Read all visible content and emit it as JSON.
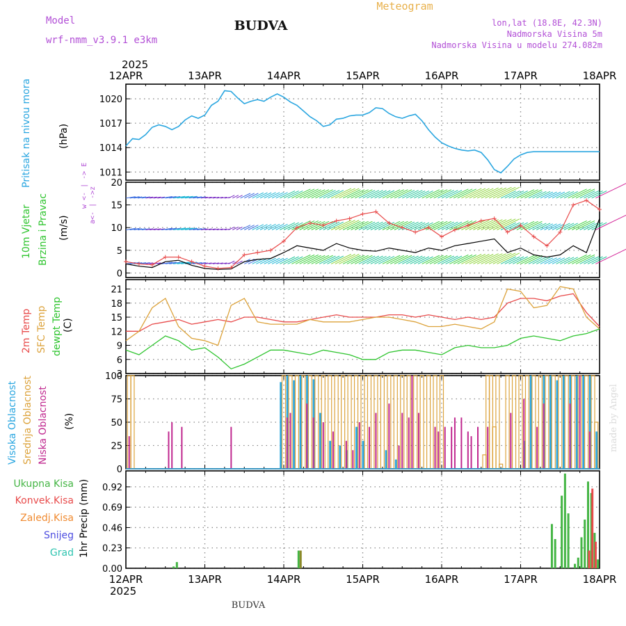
{
  "header": {
    "meteogram_label": "Meteogram",
    "model_label": "Model",
    "model_name": "wrf-nmm_v3.9.1  e3km",
    "station": "BUDVA",
    "lonlat": "lon,lat (18.8E, 42.3N)",
    "elevation": "Nadmorska Visina 5m",
    "model_elevation": "Nadmorska Visina u modelu 274.082m",
    "watermark": "made by Angel",
    "footer_station": "BUDVA"
  },
  "time_axis": {
    "year": "2025",
    "labels": [
      "12APR",
      "13APR",
      "14APR",
      "15APR",
      "16APR",
      "17APR",
      "18APR"
    ],
    "range_hours": [
      0,
      144
    ]
  },
  "colors": {
    "pressure": "#2aa6e0",
    "wind_gust": "#e84a4a",
    "wind_speed": "#000000",
    "temp2m": "#e84a4a",
    "sfc_temp": "#dca23a",
    "dewpoint": "#2ec42e",
    "cloud_high": "#2aa6e0",
    "cloud_mid": "#dca23a",
    "cloud_low": "#c0288f",
    "precip_total": "#44b544",
    "precip_conv": "#e84a4a",
    "precip_freezing": "#f08a30",
    "precip_snow": "#4d4de0",
    "precip_hail": "#2ec4b0",
    "label_purple": "#b24fd6",
    "meteogram_orange": "#e8b04a"
  },
  "chart_data": [
    {
      "id": "pressure",
      "type": "line",
      "title": "Pritisak na nivou mora",
      "ylabel": "(hPa)",
      "ylim": [
        1010,
        1021.8
      ],
      "yticks": [
        1011,
        1014,
        1017,
        1020
      ],
      "x_hours": [
        0,
        2,
        4,
        6,
        8,
        10,
        12,
        14,
        16,
        18,
        20,
        22,
        24,
        26,
        28,
        30,
        32,
        34,
        36,
        38,
        40,
        42,
        44,
        46,
        48,
        50,
        52,
        54,
        56,
        58,
        60,
        62,
        64,
        66,
        68,
        70,
        72,
        74,
        76,
        78,
        80,
        82,
        84,
        86,
        88,
        90,
        92,
        94,
        96,
        98,
        100,
        102,
        104,
        106,
        108,
        110,
        112,
        114,
        116,
        118,
        120,
        122,
        124,
        126,
        128,
        130,
        132,
        134,
        136,
        138,
        140,
        142,
        144
      ],
      "values": [
        1014.2,
        1015.1,
        1015.0,
        1015.6,
        1016.5,
        1016.8,
        1016.6,
        1016.2,
        1016.6,
        1017.4,
        1017.9,
        1017.6,
        1018.0,
        1019.2,
        1019.7,
        1021.0,
        1020.9,
        1020.1,
        1019.4,
        1019.7,
        1019.9,
        1019.7,
        1020.2,
        1020.6,
        1020.2,
        1019.6,
        1019.2,
        1018.5,
        1017.8,
        1017.3,
        1016.6,
        1016.8,
        1017.5,
        1017.6,
        1017.9,
        1018.0,
        1018.0,
        1018.3,
        1018.9,
        1018.8,
        1018.2,
        1017.8,
        1017.6,
        1017.9,
        1018.1,
        1017.3,
        1016.2,
        1015.3,
        1014.6,
        1014.2,
        1013.9,
        1013.7,
        1013.6,
        1013.7,
        1013.4,
        1012.5,
        1011.3,
        1010.9,
        1011.7,
        1012.6,
        1013.1,
        1013.4,
        1013.5,
        1013.5,
        1013.5,
        1013.5,
        1013.5,
        1013.5,
        1013.5,
        1013.5,
        1013.5,
        1013.5,
        1013.5
      ]
    },
    {
      "id": "wind",
      "type": "line",
      "title": "10m Vjetar",
      "subtitle": "Brzina i Pravac",
      "ylabel": "(m/s)",
      "ylim": [
        -1,
        20
      ],
      "yticks": [
        0,
        5,
        10,
        15,
        20
      ],
      "direction_legend": "w <- | -> E",
      "direction_legend_sub": "a<- | ->z",
      "barb_levels": [
        2,
        9.5,
        16.5
      ],
      "x_hours": [
        0,
        4,
        8,
        12,
        16,
        20,
        24,
        28,
        32,
        36,
        40,
        44,
        48,
        52,
        56,
        60,
        64,
        68,
        72,
        76,
        80,
        84,
        88,
        92,
        96,
        100,
        104,
        108,
        112,
        116,
        120,
        124,
        128,
        132,
        136,
        140,
        144
      ],
      "series": [
        {
          "name": "Brzina",
          "values": [
            2.0,
            1.5,
            1.2,
            2.5,
            2.8,
            1.7,
            1.0,
            0.8,
            0.9,
            2.5,
            3.0,
            3.2,
            4.5,
            6.0,
            5.5,
            5.0,
            6.5,
            5.5,
            5.0,
            4.8,
            5.5,
            5.0,
            4.5,
            5.5,
            5.0,
            6.0,
            6.5,
            7.0,
            7.5,
            4.5,
            5.5,
            4.0,
            3.5,
            4.0,
            6.0,
            4.5,
            12.0
          ]
        },
        {
          "name": "Udari",
          "values": [
            2.5,
            2.0,
            1.8,
            3.5,
            3.5,
            2.5,
            1.5,
            1.0,
            1.2,
            4.0,
            4.5,
            5.0,
            7.0,
            10.0,
            11.0,
            10.5,
            11.5,
            12.0,
            13.0,
            13.5,
            11.0,
            10.0,
            9.0,
            10.0,
            8.0,
            9.5,
            10.5,
            11.5,
            12.0,
            9.0,
            10.5,
            8.0,
            6.0,
            9.0,
            15.0,
            16.0,
            14.0
          ]
        }
      ]
    },
    {
      "id": "temperature",
      "type": "line",
      "title": "2m Temp",
      "title_sfc": "SFC Temp",
      "title_dew": "dewpt Temp",
      "ylabel": "(C)",
      "ylim": [
        3,
        23
      ],
      "yticks": [
        3,
        6,
        9,
        12,
        15,
        18,
        21
      ],
      "x_hours": [
        0,
        4,
        8,
        12,
        16,
        20,
        24,
        28,
        32,
        36,
        40,
        44,
        48,
        52,
        56,
        60,
        64,
        68,
        72,
        76,
        80,
        84,
        88,
        92,
        96,
        100,
        104,
        108,
        112,
        116,
        120,
        124,
        128,
        132,
        136,
        140,
        144
      ],
      "series": [
        {
          "name": "2m Temp",
          "values": [
            12.0,
            12.0,
            13.5,
            14.0,
            14.5,
            13.5,
            14.0,
            14.5,
            14.0,
            15.0,
            15.0,
            14.5,
            14.0,
            14.0,
            14.5,
            15.0,
            15.5,
            15.0,
            15.0,
            15.0,
            15.5,
            15.5,
            15.0,
            15.5,
            15.0,
            14.5,
            15.0,
            14.5,
            15.0,
            18.0,
            19.0,
            19.0,
            18.5,
            19.5,
            20.0,
            16.0,
            13.0
          ]
        },
        {
          "name": "SFC Temp",
          "values": [
            10.0,
            12.0,
            17.0,
            19.0,
            13.0,
            10.5,
            10.0,
            9.0,
            17.5,
            19.0,
            14.0,
            13.5,
            13.5,
            13.5,
            14.5,
            14.0,
            14.0,
            14.0,
            14.5,
            15.0,
            15.0,
            14.5,
            14.0,
            13.0,
            13.0,
            13.5,
            13.0,
            12.5,
            14.0,
            21.0,
            20.5,
            17.0,
            17.5,
            21.5,
            21.0,
            15.0,
            12.5
          ]
        },
        {
          "name": "dewpt Temp",
          "values": [
            8.0,
            7.0,
            9.0,
            11.0,
            10.0,
            8.0,
            8.5,
            6.5,
            4.0,
            5.0,
            6.5,
            8.0,
            8.0,
            7.5,
            7.0,
            8.0,
            7.5,
            7.0,
            6.0,
            6.0,
            7.5,
            8.0,
            8.0,
            7.5,
            7.0,
            8.5,
            9.0,
            8.5,
            8.5,
            9.0,
            10.5,
            11.0,
            10.5,
            10.0,
            11.0,
            11.5,
            12.5
          ]
        }
      ]
    },
    {
      "id": "clouds",
      "type": "bar",
      "title_high": "Visoka Oblacnost",
      "title_mid": "Srednja Oblacnost",
      "title_low": "Niska Oblacnost",
      "ylabel": "(%)",
      "ylim": [
        0,
        100
      ],
      "yticks": [
        0,
        25,
        50,
        75,
        100
      ],
      "series": [
        {
          "name": "Visoka",
          "hours": [
            47,
            49,
            51,
            53,
            55,
            57,
            59,
            62,
            65,
            67,
            70,
            72,
            79,
            82,
            121,
            123,
            127,
            129,
            131,
            133,
            135,
            137,
            139,
            141,
            143
          ],
          "values": [
            93,
            100,
            95,
            100,
            100,
            96,
            60,
            30,
            25,
            20,
            45,
            30,
            20,
            10,
            30,
            100,
            100,
            100,
            95,
            100,
            100,
            100,
            100,
            100,
            40
          ]
        },
        {
          "name": "Srednja",
          "hours": [
            1,
            2,
            48,
            50,
            52,
            54,
            56,
            58,
            60,
            62,
            64,
            66,
            68,
            70,
            72,
            74,
            76,
            78,
            80,
            82,
            84,
            86,
            88,
            90,
            92,
            94,
            96,
            109,
            110,
            111,
            112,
            113,
            114,
            116,
            118,
            120,
            122,
            124,
            126,
            128,
            130,
            132,
            134,
            136,
            138,
            140,
            142,
            143
          ],
          "values": [
            100,
            100,
            100,
            100,
            100,
            100,
            100,
            100,
            100,
            100,
            100,
            100,
            100,
            100,
            100,
            100,
            100,
            100,
            100,
            100,
            100,
            100,
            100,
            100,
            100,
            100,
            100,
            15,
            100,
            100,
            45,
            100,
            5,
            100,
            100,
            100,
            100,
            100,
            100,
            100,
            100,
            100,
            100,
            100,
            100,
            100,
            100,
            50
          ]
        },
        {
          "name": "Niska",
          "hours": [
            1,
            13,
            14,
            17,
            32,
            49,
            50,
            55,
            57,
            60,
            63,
            67,
            69,
            71,
            74,
            76,
            80,
            83,
            84,
            86,
            87,
            89,
            94,
            95,
            97,
            99,
            100,
            102,
            104,
            105,
            107,
            110,
            117,
            121,
            125,
            127,
            135,
            138,
            141
          ],
          "values": [
            35,
            40,
            50,
            45,
            45,
            55,
            60,
            70,
            55,
            50,
            40,
            30,
            20,
            50,
            45,
            60,
            70,
            25,
            60,
            55,
            100,
            60,
            45,
            40,
            45,
            45,
            55,
            55,
            40,
            35,
            45,
            45,
            60,
            75,
            45,
            70,
            70,
            100,
            40
          ]
        }
      ]
    },
    {
      "id": "precip",
      "type": "bar",
      "title_total": "Ukupna Kisa",
      "title_conv": "Konvek.Kisa",
      "title_freezing": "Zaledj.Kisa",
      "title_snow": "Snijeg",
      "title_hail": "Grad",
      "ylabel": "1hr Precip (mm)",
      "ylim": [
        0,
        1.1
      ],
      "yticks": [
        0,
        0.23,
        0.46,
        0.69,
        0.92
      ],
      "hours": [
        14.5,
        15.5,
        52.5,
        129.5,
        130.5,
        132.5,
        133.5,
        134.5,
        136.5,
        137.5,
        138.5,
        139.5,
        140.5,
        141.5,
        142.5,
        143.5
      ],
      "series": [
        {
          "name": "Ukupna Kisa",
          "values": [
            0.02,
            0.07,
            0.2,
            0.5,
            0.33,
            0.82,
            1.07,
            0.62,
            0.05,
            0.12,
            0.35,
            0.55,
            0.98,
            0.85,
            0.4,
            0.1
          ]
        },
        {
          "name": "Konvek.Kisa",
          "values": [
            0,
            0,
            0,
            0,
            0,
            0,
            0,
            0,
            0,
            0,
            0,
            0,
            0.2,
            0.9,
            0.3,
            0
          ]
        },
        {
          "name": "Zaledj.Kisa",
          "values": [
            0,
            0,
            0.2,
            0,
            0,
            0,
            0,
            0,
            0,
            0,
            0,
            0,
            0,
            0,
            0,
            0
          ]
        }
      ]
    }
  ]
}
